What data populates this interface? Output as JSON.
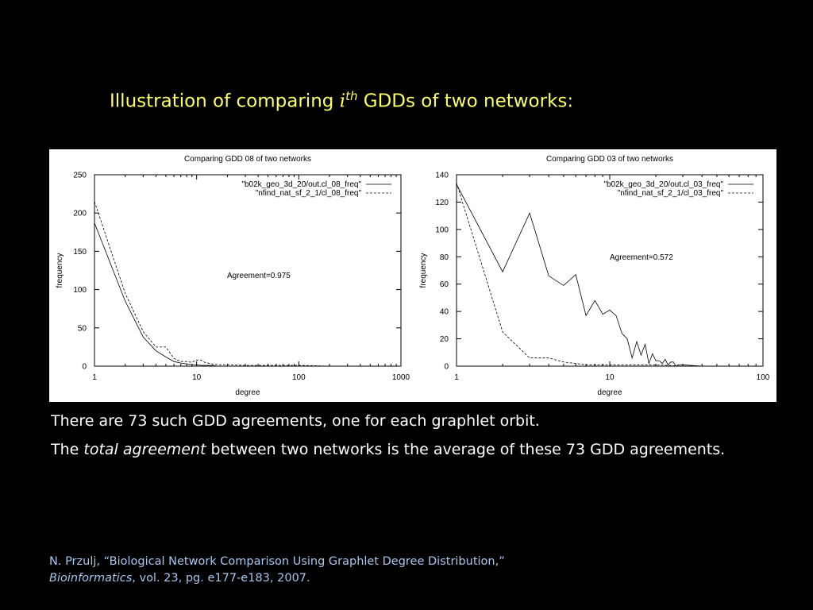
{
  "slide": {
    "title_prefix": "Illustration of comparing ",
    "title_math_base": "i",
    "title_math_sup": "th",
    "title_suffix": " GDDs of two networks:",
    "body_line1": "There are 73 such GDD agreements, one for each graphlet orbit.",
    "body_line2_prefix": "The ",
    "body_line2_em": "total agreement",
    "body_line2_suffix": " between two networks is the average of these 73 GDD agreements.",
    "citation_line1": "N. Przulj, “Biological Network Comparison Using Graphlet Degree Distribution,”",
    "citation_journal": "Bioinformatics",
    "citation_line2_suffix": ", vol. 23, pg. e177-e183, 2007.",
    "colors": {
      "background": "#000000",
      "title": "#ffff66",
      "body": "#ffffff",
      "citation": "#a9c6ee"
    }
  },
  "chart_data": [
    {
      "type": "line",
      "title": "Comparing GDD 08 of two networks",
      "xlabel": "degree",
      "ylabel": "frequency",
      "xscale": "log",
      "xlim": [
        1,
        1000
      ],
      "ylim": [
        0,
        250
      ],
      "xticks": [
        1,
        10,
        100,
        1000
      ],
      "xtick_labels": [
        "1",
        "10",
        "100",
        "1000"
      ],
      "yticks": [
        0,
        50,
        100,
        150,
        200,
        250
      ],
      "ytick_labels": [
        "0",
        "50",
        "100",
        "150",
        "200",
        "250"
      ],
      "annotation": "Agreement=0.975",
      "legend_position": "top-right",
      "grid": false,
      "series": [
        {
          "name": "\"b02k_geo_3d_20/out.cl_08_freq\"",
          "style": "solid",
          "x": [
            1,
            2,
            3,
            4,
            5,
            6,
            7,
            8,
            9,
            10,
            11,
            12,
            14,
            16,
            20,
            30,
            50,
            100,
            200
          ],
          "y": [
            187,
            85,
            38,
            20,
            12,
            6,
            4,
            3,
            2,
            2,
            1,
            1,
            1,
            0,
            0,
            0,
            0,
            0,
            0
          ]
        },
        {
          "name": "\"nfind_nat_sf_2_1/cl_08_freq\"",
          "style": "dashed",
          "x": [
            1,
            2,
            3,
            4,
            5,
            6,
            7,
            8,
            9,
            10,
            11,
            12,
            14,
            16,
            20,
            30,
            50,
            100,
            200
          ],
          "y": [
            215,
            95,
            45,
            25,
            25,
            10,
            6,
            6,
            5,
            8,
            8,
            5,
            3,
            2,
            2,
            1,
            1,
            1,
            0
          ]
        }
      ]
    },
    {
      "type": "line",
      "title": "Comparing GDD 03 of two networks",
      "xlabel": "degree",
      "ylabel": "frequency",
      "xscale": "log",
      "xlim": [
        1,
        100
      ],
      "ylim": [
        0,
        140
      ],
      "xticks": [
        1,
        10,
        100
      ],
      "xtick_labels": [
        "1",
        "10",
        "100"
      ],
      "yticks": [
        0,
        20,
        40,
        60,
        80,
        100,
        120,
        140
      ],
      "ytick_labels": [
        "0",
        "20",
        "40",
        "60",
        "80",
        "100",
        "120",
        "140"
      ],
      "annotation": "Agreement=0.572",
      "legend_position": "top-right",
      "grid": false,
      "series": [
        {
          "name": "\"b02k_geo_3d_20/out.cl_03_freq\"",
          "style": "solid",
          "x": [
            1,
            2,
            3,
            4,
            5,
            6,
            7,
            8,
            9,
            10,
            11,
            12,
            13,
            14,
            15,
            16,
            17,
            18,
            19,
            20,
            21,
            22,
            23,
            24,
            25,
            26,
            27,
            28,
            30,
            40
          ],
          "y": [
            133,
            69,
            112,
            66,
            59,
            67,
            37,
            48,
            38,
            41,
            37,
            24,
            20,
            6,
            18,
            8,
            16,
            2,
            9,
            4,
            4,
            2,
            5,
            1,
            3,
            3,
            0,
            1,
            1,
            0
          ]
        },
        {
          "name": "\"nfind_nat_sf_2_1/cl_03_freq\"",
          "style": "dashed",
          "x": [
            1,
            2,
            3,
            4,
            5,
            6,
            7,
            8,
            10,
            15,
            20,
            30,
            40
          ],
          "y": [
            134,
            25,
            6,
            6,
            3,
            2,
            1,
            1,
            1,
            1,
            1,
            0,
            0
          ]
        }
      ]
    }
  ]
}
